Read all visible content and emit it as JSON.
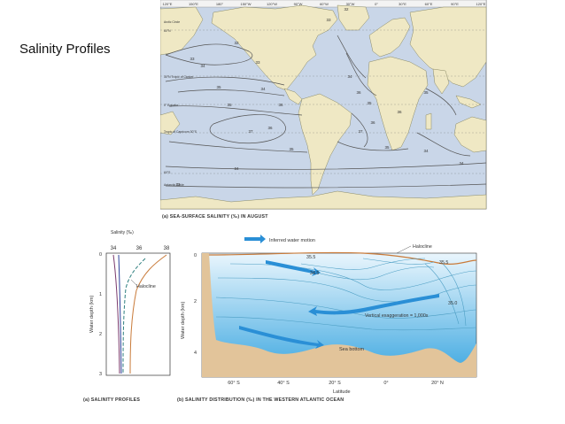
{
  "slide": {
    "title": "Salinity Profiles"
  },
  "map": {
    "caption": "(a) SEA-SURFACE SALINITY (‰) IN AUGUST",
    "longitudes": [
      "120°E",
      "150°E",
      "180°",
      "150°W",
      "120°W",
      "90°W",
      "60°W",
      "30°W",
      "0°",
      "30°E",
      "60°E",
      "90°E",
      "120°E"
    ],
    "latitudes": [
      "Arctic Circle",
      "60°N",
      "30°N Tropic of Cancer",
      "0° Equator",
      "Tropic of Capricorn 30°S",
      "60°S",
      "Antarctic Circle"
    ],
    "contour_labels": [
      "32",
      "33",
      "34",
      "33",
      "35",
      "34",
      "36",
      "37",
      "35",
      "36",
      "35",
      "34",
      "33",
      "36",
      "35",
      "34",
      "37",
      "36",
      "35",
      "34",
      "35",
      "36",
      "34",
      "33",
      "32"
    ]
  },
  "profiles": {
    "caption": "(a) SALINITY PROFILES",
    "x_axis_title": "Salinity (‰)",
    "x_ticks": [
      "34",
      "36",
      "38"
    ],
    "y_axis_title": "Water depth (km)",
    "y_ticks": [
      "0",
      "1",
      "2",
      "3"
    ],
    "halocline_label": "Halocline",
    "colors": {
      "orange": "#c97b3a",
      "teal": "#2e7f7f",
      "blue": "#2b3f9a",
      "purple": "#7a3b6e"
    }
  },
  "distribution": {
    "caption": "(b) SALINITY DISTRIBUTION (‰) IN THE WESTERN ATLANTIC OCEAN",
    "legend_label": "Inferred water motion",
    "halocline_label": "Halocline",
    "contour_labels": [
      "35.5",
      "35.5",
      "34.5",
      "35.0"
    ],
    "exaggeration_label": "Vertical exaggeration = 1,000x",
    "sea_bottom_label": "Sea bottom",
    "y_axis_title": "Water depth (km)",
    "y_ticks": [
      "0",
      "2",
      "4"
    ],
    "x_ticks": [
      "60° S",
      "40° S",
      "20° S",
      "0°",
      "20° N"
    ],
    "x_axis_title": "Latitude",
    "colors": {
      "water_top": "#eaf6fd",
      "water_bottom": "#3aa6e0",
      "sediment": "#e2c49a",
      "arrow": "#2a8fd6"
    }
  }
}
